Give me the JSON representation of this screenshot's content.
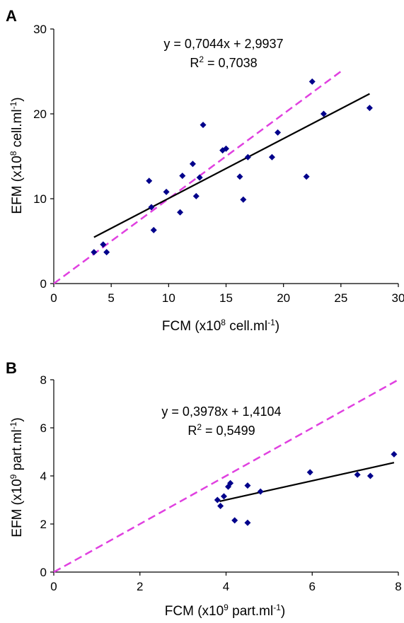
{
  "chart_data": [
    {
      "type": "scatter",
      "panel_label": "A",
      "xlabel": {
        "prefix": "FCM (x10",
        "sup": "8",
        "mid": " cell.ml",
        "sup2": "-1",
        "suffix": ")"
      },
      "ylabel": {
        "prefix": "EFM (x10",
        "sup": "8",
        "mid": " cell.ml",
        "sup2": "-1",
        "suffix": ")"
      },
      "xlim": [
        0,
        30
      ],
      "ylim": [
        0,
        30
      ],
      "xticks": [
        0,
        5,
        10,
        15,
        20,
        25,
        30
      ],
      "yticks": [
        0,
        10,
        20,
        30
      ],
      "equation": "y = 0,7044x + 2,9937",
      "r2": {
        "prefix": "R",
        "sup": "2",
        "suffix": " = 0,7038"
      },
      "marker_color": "#00008b",
      "fit_color": "#000000",
      "identity_color": "#e040e0",
      "fit_line": {
        "x": [
          3.5,
          27.5
        ]
      },
      "fit": {
        "slope": 0.7044,
        "intercept": 2.9937
      },
      "identity_line": {
        "x": [
          0,
          25
        ]
      },
      "points": [
        [
          3.5,
          3.7
        ],
        [
          4.3,
          4.6
        ],
        [
          4.6,
          3.7
        ],
        [
          8.3,
          12.1
        ],
        [
          8.5,
          9.0
        ],
        [
          8.7,
          6.3
        ],
        [
          9.8,
          10.8
        ],
        [
          11.0,
          8.4
        ],
        [
          11.2,
          12.7
        ],
        [
          12.1,
          14.1
        ],
        [
          12.4,
          10.3
        ],
        [
          12.7,
          12.5
        ],
        [
          13.0,
          18.7
        ],
        [
          14.7,
          15.7
        ],
        [
          15.0,
          15.9
        ],
        [
          16.2,
          12.6
        ],
        [
          16.5,
          9.9
        ],
        [
          16.9,
          14.9
        ],
        [
          19.0,
          14.9
        ],
        [
          19.5,
          17.8
        ],
        [
          22.0,
          12.6
        ],
        [
          22.5,
          23.8
        ],
        [
          23.5,
          20.0
        ],
        [
          27.5,
          20.7
        ]
      ]
    },
    {
      "type": "scatter",
      "panel_label": "B",
      "xlabel": {
        "prefix": "FCM (x10",
        "sup": "9",
        "mid": " part.ml",
        "sup2": "-1",
        "suffix": ")"
      },
      "ylabel": {
        "prefix": "EFM (x10",
        "sup": "9",
        "mid": " part.ml",
        "sup2": "-1",
        "suffix": ")"
      },
      "xlim": [
        0,
        8
      ],
      "ylim": [
        0,
        8
      ],
      "xticks": [
        0,
        2,
        4,
        6,
        8
      ],
      "yticks": [
        0,
        2,
        4,
        6,
        8
      ],
      "equation": "y = 0,3978x + 1,4104",
      "r2": {
        "prefix": "R",
        "sup": "2",
        "suffix": " = 0,5499"
      },
      "marker_color": "#00008b",
      "fit_color": "#000000",
      "identity_color": "#e040e0",
      "fit_line": {
        "x": [
          3.85,
          7.9
        ]
      },
      "fit": {
        "slope": 0.3978,
        "intercept": 1.4104
      },
      "identity_line": {
        "x": [
          0,
          8
        ]
      },
      "points": [
        [
          3.8,
          3.0
        ],
        [
          3.87,
          2.75
        ],
        [
          3.95,
          3.15
        ],
        [
          4.05,
          3.55
        ],
        [
          4.1,
          3.7
        ],
        [
          4.2,
          2.15
        ],
        [
          4.5,
          3.6
        ],
        [
          4.5,
          2.05
        ],
        [
          4.8,
          3.35
        ],
        [
          5.95,
          4.15
        ],
        [
          7.05,
          4.05
        ],
        [
          7.35,
          4.0
        ],
        [
          7.9,
          4.9
        ]
      ]
    }
  ]
}
